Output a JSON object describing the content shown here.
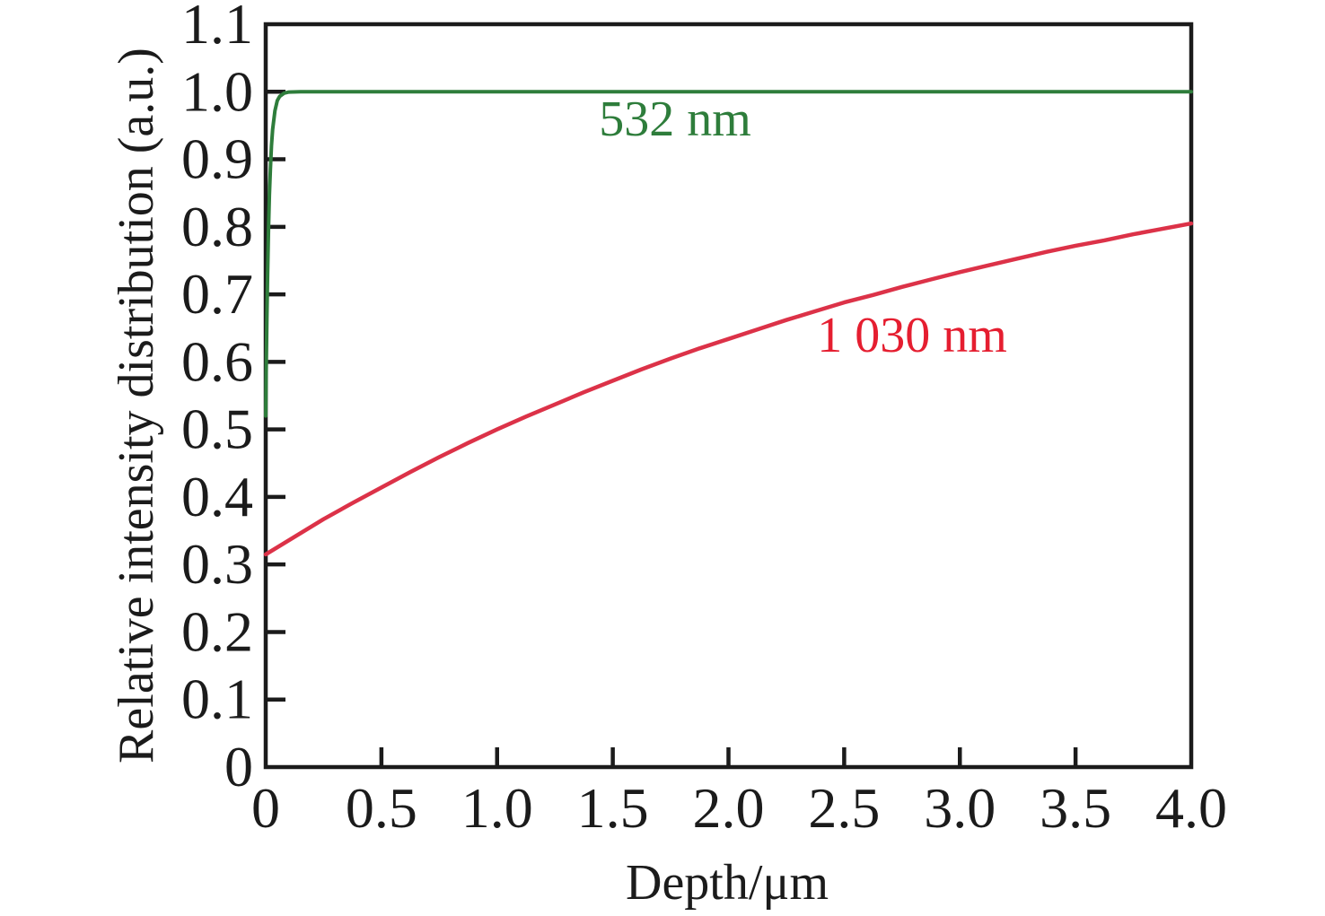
{
  "figure": {
    "background": "#ffffff",
    "frame_color": "#1b1b1b",
    "text_color": "#1b1b1b"
  },
  "chart_data": {
    "type": "line",
    "title": "",
    "xlabel": "Depth/μm",
    "ylabel": "Relative intensity distribution (a.u.)",
    "xlim": [
      0,
      4.0
    ],
    "ylim": [
      0,
      1.1
    ],
    "grid": false,
    "legend_position": "inline-annotations",
    "xticks": {
      "values": [
        0,
        0.5,
        1.0,
        1.5,
        2.0,
        2.5,
        3.0,
        3.5,
        4.0
      ],
      "labels": [
        "0",
        "0.5",
        "1.0",
        "1.5",
        "2.0",
        "2.5",
        "3.0",
        "3.5",
        "4.0"
      ]
    },
    "yticks": {
      "values": [
        0,
        0.1,
        0.2,
        0.3,
        0.4,
        0.5,
        0.6,
        0.7,
        0.8,
        0.9,
        1.0,
        1.1
      ],
      "labels": [
        "0",
        "0.1",
        "0.2",
        "0.3",
        "0.4",
        "0.5",
        "0.6",
        "0.7",
        "0.8",
        "0.9",
        "1.0",
        "1.1"
      ]
    },
    "series": [
      {
        "name": "532 nm",
        "annotation_label": "532 nm",
        "color": "#2e7d3b",
        "label_color": "#2e7d3b",
        "points": [
          [
            0,
            0.52
          ],
          [
            0.002,
            0.584
          ],
          [
            0.005,
            0.664
          ],
          [
            0.008,
            0.729
          ],
          [
            0.012,
            0.796
          ],
          [
            0.016,
            0.847
          ],
          [
            0.02,
            0.885
          ],
          [
            0.025,
            0.92
          ],
          [
            0.03,
            0.944
          ],
          [
            0.04,
            0.972
          ],
          [
            0.05,
            0.987
          ],
          [
            0.06,
            0.993
          ],
          [
            0.08,
            0.998
          ],
          [
            0.1,
            0.9995
          ],
          [
            0.15,
            1.0
          ],
          [
            0.2,
            1.0
          ],
          [
            0.5,
            1.0
          ],
          [
            1.0,
            1.0
          ],
          [
            1.5,
            1.0
          ],
          [
            2.0,
            1.0
          ],
          [
            2.5,
            1.0
          ],
          [
            3.0,
            1.0
          ],
          [
            3.5,
            1.0
          ],
          [
            4.0,
            1.0
          ]
        ]
      },
      {
        "name": "1 030 nm",
        "annotation_label": "1 030 nm",
        "color": "#dc3248",
        "label_color": "#e51e30",
        "points": [
          [
            0,
            0.315
          ],
          [
            0.125,
            0.341
          ],
          [
            0.25,
            0.367
          ],
          [
            0.375,
            0.391
          ],
          [
            0.5,
            0.414
          ],
          [
            0.625,
            0.437
          ],
          [
            0.75,
            0.459
          ],
          [
            0.875,
            0.48
          ],
          [
            1.0,
            0.5
          ],
          [
            1.125,
            0.519
          ],
          [
            1.25,
            0.537
          ],
          [
            1.375,
            0.555
          ],
          [
            1.5,
            0.572
          ],
          [
            1.625,
            0.589
          ],
          [
            1.75,
            0.605
          ],
          [
            1.875,
            0.62
          ],
          [
            2.0,
            0.634
          ],
          [
            2.125,
            0.648
          ],
          [
            2.25,
            0.662
          ],
          [
            2.375,
            0.675
          ],
          [
            2.5,
            0.688
          ],
          [
            2.625,
            0.699
          ],
          [
            2.75,
            0.711
          ],
          [
            2.875,
            0.722
          ],
          [
            3.0,
            0.733
          ],
          [
            3.125,
            0.743
          ],
          [
            3.25,
            0.753
          ],
          [
            3.375,
            0.763
          ],
          [
            3.5,
            0.772
          ],
          [
            3.625,
            0.78
          ],
          [
            3.75,
            0.789
          ],
          [
            3.875,
            0.797
          ],
          [
            4.0,
            0.805
          ]
        ]
      }
    ]
  }
}
